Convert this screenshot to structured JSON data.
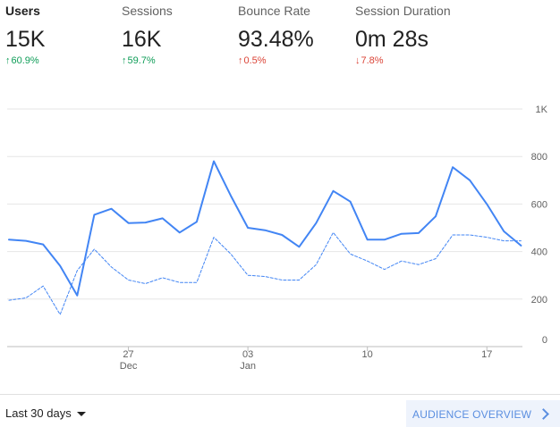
{
  "metrics": [
    {
      "label": "Users",
      "value": "15K",
      "delta": "60.9%",
      "direction": "up",
      "color": "#0f9d58",
      "selected": true
    },
    {
      "label": "Sessions",
      "value": "16K",
      "delta": "59.7%",
      "direction": "up",
      "color": "#0f9d58",
      "selected": false
    },
    {
      "label": "Bounce Rate",
      "value": "93.48%",
      "delta": "0.5%",
      "direction": "up",
      "color": "#db4437",
      "selected": false
    },
    {
      "label": "Session Duration",
      "value": "0m 28s",
      "delta": "7.8%",
      "direction": "down",
      "color": "#db4437",
      "selected": false
    }
  ],
  "chart_data": {
    "type": "line",
    "x": [
      "Dec 20",
      "Dec 21",
      "Dec 22",
      "Dec 23",
      "Dec 24",
      "Dec 25",
      "Dec 26",
      "Dec 27",
      "Dec 28",
      "Dec 29",
      "Dec 30",
      "Dec 31",
      "Jan 1",
      "Jan 2",
      "Jan 3",
      "Jan 4",
      "Jan 5",
      "Jan 6",
      "Jan 7",
      "Jan 8",
      "Jan 9",
      "Jan 10",
      "Jan 11",
      "Jan 12",
      "Jan 13",
      "Jan 14",
      "Jan 15",
      "Jan 16",
      "Jan 17",
      "Jan 18",
      "Jan 19"
    ],
    "x_tick_labels": [
      {
        "index": 7,
        "day": "27",
        "month": "Dec"
      },
      {
        "index": 14,
        "day": "03",
        "month": "Jan"
      },
      {
        "index": 21,
        "day": "10",
        "month": ""
      },
      {
        "index": 28,
        "day": "17",
        "month": ""
      }
    ],
    "series": [
      {
        "style": "solid",
        "color": "#4285f4",
        "values": [
          450,
          445,
          430,
          340,
          215,
          555,
          580,
          520,
          522,
          540,
          480,
          525,
          780,
          635,
          500,
          490,
          470,
          420,
          520,
          655,
          610,
          450,
          450,
          475,
          478,
          548,
          755,
          700,
          600,
          485,
          425
        ]
      },
      {
        "style": "dashed",
        "color": "#4285f4",
        "values": [
          195,
          205,
          255,
          135,
          320,
          410,
          335,
          280,
          265,
          290,
          270,
          270,
          460,
          390,
          300,
          295,
          280,
          280,
          345,
          480,
          390,
          360,
          325,
          360,
          345,
          370,
          470,
          470,
          460,
          445,
          445
        ]
      }
    ],
    "ylim": [
      0,
      1000
    ],
    "y_ticks": [
      0,
      200,
      400,
      600,
      800,
      1000
    ],
    "y_tick_labels": [
      "0",
      "200",
      "400",
      "600",
      "800",
      "1K"
    ],
    "grid": true,
    "legend": "none"
  },
  "footer": {
    "range_label": "Last 30 days",
    "overview_label": "AUDIENCE OVERVIEW"
  }
}
